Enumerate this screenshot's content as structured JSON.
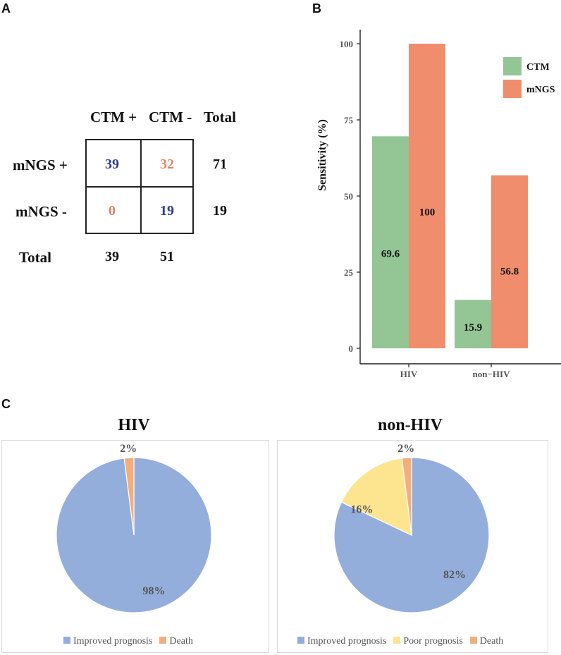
{
  "colors": {
    "ctm": "#93c595",
    "mngs": "#ef8d6d",
    "blue_num": "#2f3d8f",
    "orange_num": "#e9825f",
    "improved": "#94aedc",
    "poor": "#fde48f",
    "death": "#f3ae7d"
  },
  "panel_a": {
    "label": "A",
    "col_headers": [
      "CTM +",
      "CTM -",
      "Total"
    ],
    "row_headers": [
      "mNGS +",
      "mNGS -",
      "Total"
    ],
    "cells": [
      [
        "39",
        "32"
      ],
      [
        "0",
        "19"
      ]
    ],
    "row_totals": [
      "71",
      "19"
    ],
    "col_totals": [
      "39",
      "51"
    ]
  },
  "panel_b": {
    "label": "B"
  },
  "panel_c": {
    "label": "C"
  },
  "chart_data": [
    {
      "type": "bar",
      "title": "",
      "xlabel": "",
      "ylabel": "Sensitivity (%)",
      "categories": [
        "HIV",
        "non−HIV"
      ],
      "series": [
        {
          "name": "CTM",
          "values": [
            69.6,
            15.9
          ],
          "labels": [
            "69.6",
            "15.9"
          ]
        },
        {
          "name": "mNGS",
          "values": [
            100,
            56.8
          ],
          "labels": [
            "100",
            "56.8"
          ]
        }
      ],
      "ylim": [
        0,
        100
      ],
      "yticks": [
        "0",
        "25",
        "50",
        "75",
        "100"
      ],
      "legend": "top-right"
    },
    {
      "type": "pie",
      "title": "HIV",
      "labels": [
        "Improved prognosis",
        "Death"
      ],
      "values": [
        98,
        2
      ],
      "value_labels": [
        "98%",
        "2%"
      ]
    },
    {
      "type": "pie",
      "title": "non-HIV",
      "labels": [
        "Improved prognosis",
        "Poor prognosis",
        "Death"
      ],
      "values": [
        82,
        16,
        2
      ],
      "value_labels": [
        "82%",
        "16%",
        "2%"
      ]
    }
  ]
}
